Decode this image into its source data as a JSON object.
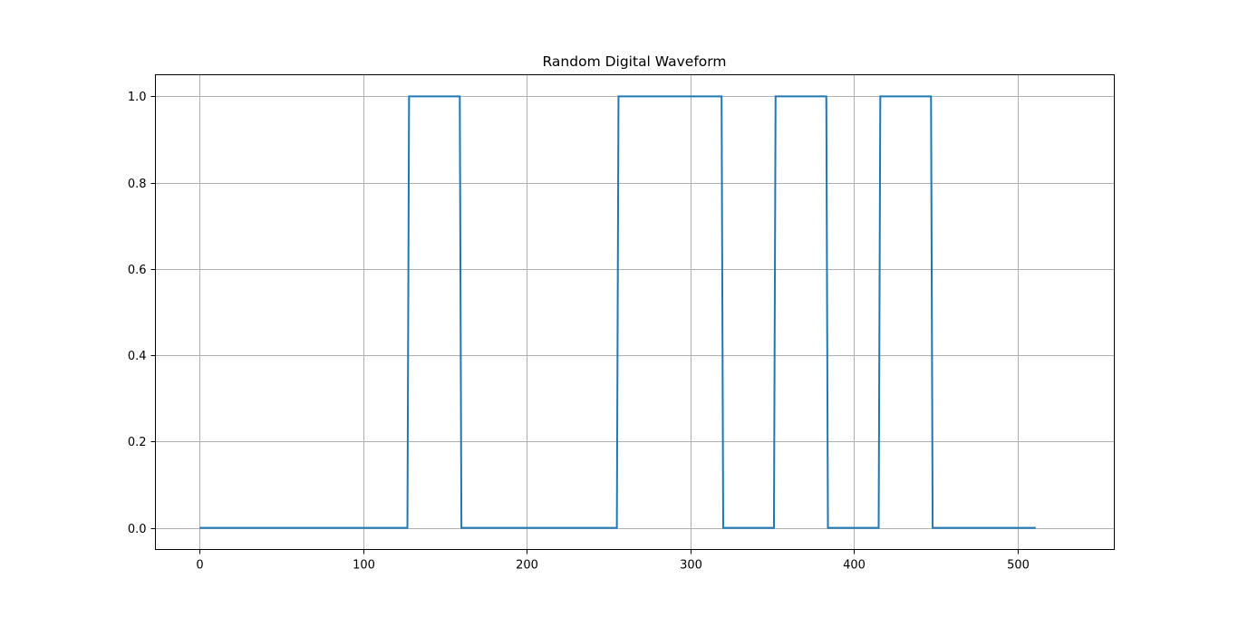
{
  "chart_data": {
    "type": "line",
    "title": "Random Digital Waveform",
    "xlabel": "",
    "ylabel": "",
    "xlim": [
      -27,
      559
    ],
    "ylim": [
      -0.05,
      1.05
    ],
    "xticks": [
      0,
      100,
      200,
      300,
      400,
      500
    ],
    "yticks": [
      0.0,
      0.2,
      0.4,
      0.6,
      0.8,
      1.0
    ],
    "xtick_labels": [
      "0",
      "100",
      "200",
      "300",
      "400",
      "500"
    ],
    "ytick_labels": [
      "0.0",
      "0.2",
      "0.4",
      "0.6",
      "0.8",
      "1.0"
    ],
    "grid": true,
    "line_color": "#1f77b4",
    "series": [
      {
        "x": [
          0,
          127,
          128,
          159,
          160,
          255,
          256,
          319,
          320,
          351,
          352,
          383,
          384,
          415,
          416,
          447,
          448,
          511
        ],
        "y": [
          0,
          0,
          1,
          1,
          0,
          0,
          1,
          1,
          0,
          0,
          1,
          1,
          0,
          0,
          1,
          1,
          0,
          0
        ]
      }
    ]
  }
}
